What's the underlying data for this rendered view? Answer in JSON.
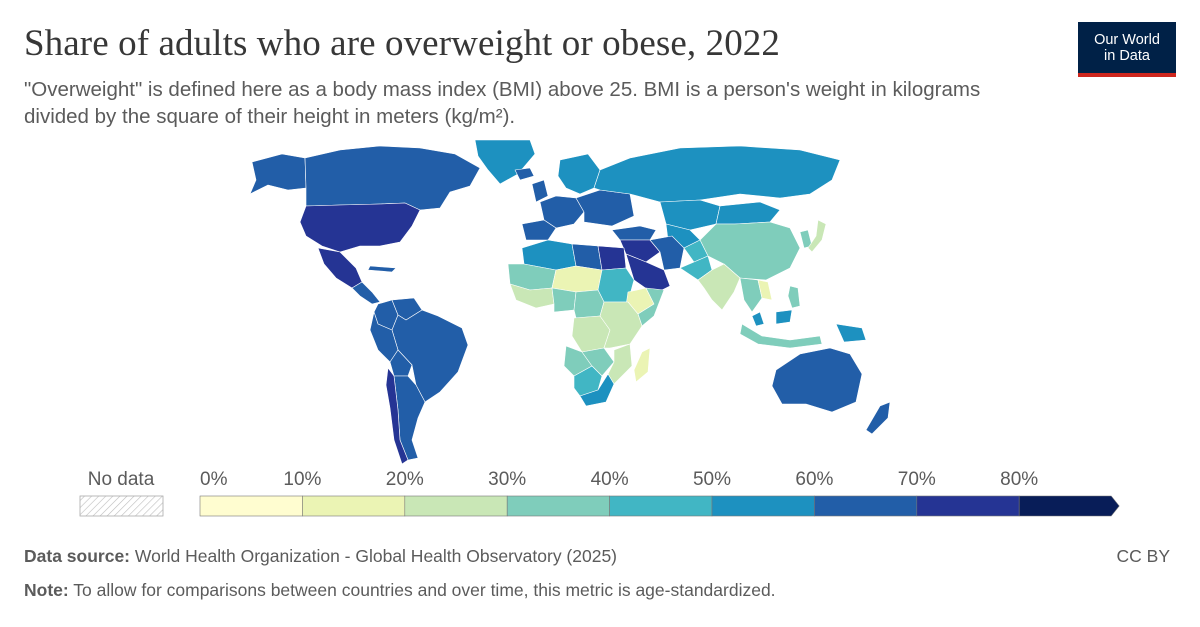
{
  "title": "Share of adults who are overweight or obese, 2022",
  "subtitle": "\"Overweight\" is defined here as a body mass index (BMI) above 25. BMI is a person's weight in kilograms divided by the square of their height in meters (kg/m²).",
  "logo": {
    "line1": "Our World",
    "line2": "in Data"
  },
  "legend": {
    "no_data_label": "No data",
    "ticks": [
      "0%",
      "10%",
      "20%",
      "30%",
      "40%",
      "50%",
      "60%",
      "70%",
      "80%"
    ],
    "colors": [
      "#fffdd0",
      "#ebf4b4",
      "#c9e7b6",
      "#7fcdbb",
      "#41b6c4",
      "#1d91c0",
      "#225ea8",
      "#253494",
      "#081d58"
    ]
  },
  "regions": [
    {
      "name": "Alaska",
      "value": 68
    },
    {
      "name": "Canada",
      "value": 60
    },
    {
      "name": "Greenland",
      "value": 55
    },
    {
      "name": "United States",
      "value": 75
    },
    {
      "name": "Mexico",
      "value": 73
    },
    {
      "name": "Central America",
      "value": 65
    },
    {
      "name": "Cuba",
      "value": 60
    },
    {
      "name": "Colombia",
      "value": 62
    },
    {
      "name": "Venezuela",
      "value": 64
    },
    {
      "name": "Brazil",
      "value": 63
    },
    {
      "name": "Peru",
      "value": 66
    },
    {
      "name": "Bolivia",
      "value": 62
    },
    {
      "name": "Argentina",
      "value": 65
    },
    {
      "name": "Chile",
      "value": 73
    },
    {
      "name": "Iceland",
      "value": 61
    },
    {
      "name": "Scandinavia",
      "value": 56
    },
    {
      "name": "United Kingdom",
      "value": 64
    },
    {
      "name": "Western Europe",
      "value": 60
    },
    {
      "name": "Spain & Portugal",
      "value": 62
    },
    {
      "name": "Eastern Europe",
      "value": 63
    },
    {
      "name": "Russia",
      "value": 58
    },
    {
      "name": "Turkey",
      "value": 67
    },
    {
      "name": "Kazakhstan",
      "value": 57
    },
    {
      "name": "Central Asia",
      "value": 52
    },
    {
      "name": "Mongolia",
      "value": 58
    },
    {
      "name": "China",
      "value": 37
    },
    {
      "name": "Japan",
      "value": 28
    },
    {
      "name": "Korea",
      "value": 36
    },
    {
      "name": "Middle East",
      "value": 72
    },
    {
      "name": "Saudi Arabia",
      "value": 71
    },
    {
      "name": "Iran",
      "value": 64
    },
    {
      "name": "Afghanistan",
      "value": 46
    },
    {
      "name": "Pakistan",
      "value": 40
    },
    {
      "name": "India",
      "value": 25
    },
    {
      "name": "Southeast Asia",
      "value": 30
    },
    {
      "name": "Vietnam",
      "value": 18
    },
    {
      "name": "Philippines",
      "value": 35
    },
    {
      "name": "Indonesia",
      "value": 32
    },
    {
      "name": "Malaysia",
      "value": 50
    },
    {
      "name": "Papua New Guinea",
      "value": 55
    },
    {
      "name": "Australia",
      "value": 67
    },
    {
      "name": "New Zealand",
      "value": 68
    },
    {
      "name": "Morocco & Algeria",
      "value": 58
    },
    {
      "name": "Libya",
      "value": 66
    },
    {
      "name": "Egypt",
      "value": 73
    },
    {
      "name": "Mauritania & Mali",
      "value": 35
    },
    {
      "name": "Niger & Chad",
      "value": 15
    },
    {
      "name": "Sudan",
      "value": 40
    },
    {
      "name": "Ethiopia",
      "value": 10
    },
    {
      "name": "Somalia",
      "value": 38
    },
    {
      "name": "West Africa",
      "value": 28
    },
    {
      "name": "Nigeria",
      "value": 32
    },
    {
      "name": "Central Africa",
      "value": 30
    },
    {
      "name": "DR Congo",
      "value": 22
    },
    {
      "name": "East Africa",
      "value": 22
    },
    {
      "name": "Angola",
      "value": 35
    },
    {
      "name": "Zambia & Zimbabwe",
      "value": 33
    },
    {
      "name": "Namibia & Botswana",
      "value": 45
    },
    {
      "name": "South Africa",
      "value": 55
    },
    {
      "name": "Mozambique",
      "value": 20
    },
    {
      "name": "Madagascar",
      "value": 12
    }
  ],
  "footer": {
    "source_label": "Data source:",
    "source_text": "World Health Organization - Global Health Observatory (2025)",
    "note_label": "Note:",
    "note_text": "To allow for comparisons between countries and over time, this metric is age-standardized.",
    "license": "CC BY"
  }
}
